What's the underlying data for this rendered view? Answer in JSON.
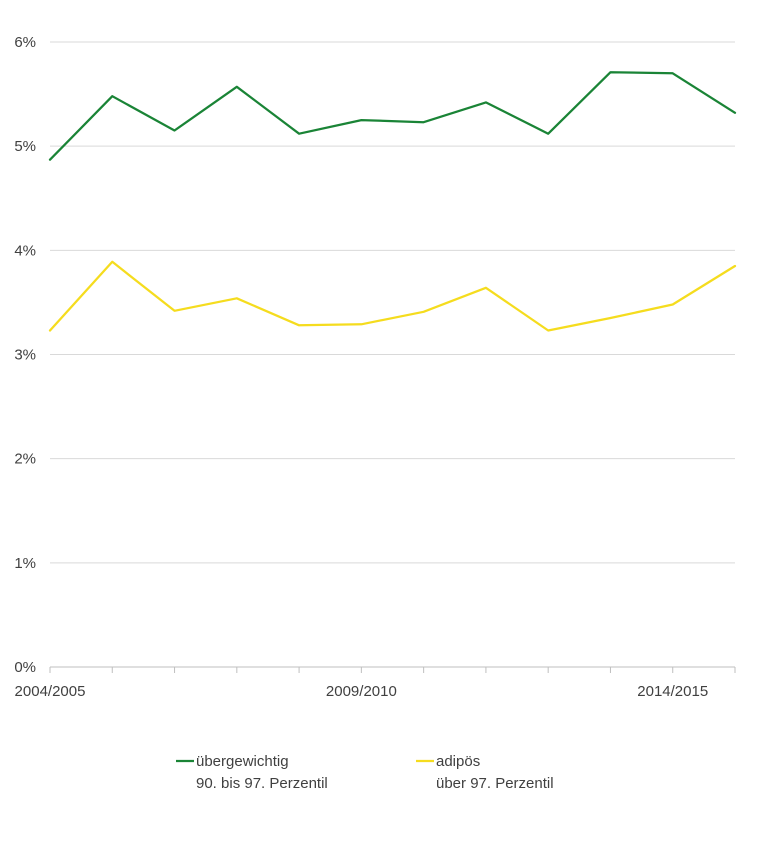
{
  "chart_data": {
    "type": "line",
    "title": "",
    "xlabel": "",
    "ylabel": "",
    "x": [
      "2004/2005",
      "2005/2006",
      "2006/2007",
      "2007/2008",
      "2008/2009",
      "2009/2010",
      "2010/2011",
      "2011/2012",
      "2012/2013",
      "2013/2014",
      "2014/2015",
      "2015/2016"
    ],
    "x_tick_labels": [
      {
        "index": 0,
        "label": "2004/2005"
      },
      {
        "index": 5,
        "label": "2009/2010"
      },
      {
        "index": 10,
        "label": "2014/2015"
      }
    ],
    "y_ticks": [
      {
        "value": 0,
        "label": "0%"
      },
      {
        "value": 1,
        "label": "1%"
      },
      {
        "value": 2,
        "label": "2%"
      },
      {
        "value": 3,
        "label": "3%"
      },
      {
        "value": 4,
        "label": "4%"
      },
      {
        "value": 5,
        "label": "5%"
      },
      {
        "value": 6,
        "label": "6%"
      }
    ],
    "ylim": [
      0,
      6
    ],
    "grid": true,
    "legend_position": "bottom",
    "series": [
      {
        "name": "übergewichtig",
        "subtitle": "90. bis 97. Perzentil",
        "color": "#1a8436",
        "values": [
          4.87,
          5.48,
          5.15,
          5.57,
          5.12,
          5.25,
          5.23,
          5.42,
          5.12,
          5.71,
          5.7,
          5.32
        ]
      },
      {
        "name": "adipös",
        "subtitle": "über 97. Perzentil",
        "color": "#f5dc1e",
        "values": [
          3.23,
          3.89,
          3.42,
          3.54,
          3.28,
          3.29,
          3.41,
          3.64,
          3.23,
          3.35,
          3.48,
          3.85
        ]
      }
    ]
  }
}
